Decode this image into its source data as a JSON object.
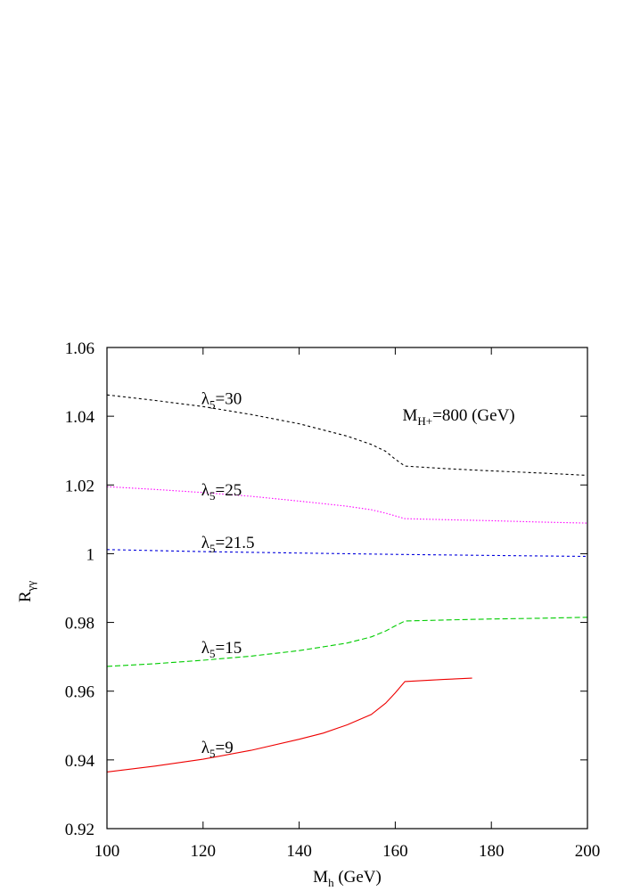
{
  "chart_data": {
    "type": "line",
    "xlabel": "M",
    "xlabel_sub": "h",
    "xlabel_unit": " (GeV)",
    "ylabel": "R",
    "ylabel_sub": "γγ",
    "xlim": [
      100,
      200
    ],
    "ylim": [
      0.92,
      1.06
    ],
    "xticks": [
      100,
      120,
      140,
      160,
      180,
      200
    ],
    "xtick_labels": [
      "100",
      "120",
      "140",
      "160",
      "180",
      "200"
    ],
    "yticks": [
      0.92,
      0.94,
      0.96,
      0.98,
      1.0,
      1.02,
      1.04,
      1.06
    ],
    "ytick_labels": [
      "0.92",
      "0.94",
      "0.96",
      "0.98",
      "1",
      "1.02",
      "1.04",
      "1.06"
    ],
    "grid": false,
    "annotation": {
      "main": "M",
      "sub": "H+",
      "rest": "=800 (GeV)"
    },
    "series": [
      {
        "label_main": "λ",
        "label_sub": "5",
        "label_rest": "=30",
        "color": "#000000",
        "dash": "3,3",
        "label_x": 120,
        "label_y": 1.043,
        "x": [
          100,
          110,
          120,
          130,
          140,
          150,
          155,
          158,
          160,
          162,
          170,
          180,
          190,
          200
        ],
        "y": [
          1.0462,
          1.0446,
          1.0428,
          1.0405,
          1.0378,
          1.0342,
          1.0318,
          1.0298,
          1.0275,
          1.0255,
          1.0248,
          1.0241,
          1.0235,
          1.0228
        ]
      },
      {
        "label_main": "λ",
        "label_sub": "5",
        "label_rest": "=25",
        "color": "#ff00ff",
        "dash": "1.5,2",
        "label_x": 120,
        "label_y": 1.0165,
        "x": [
          100,
          110,
          120,
          130,
          140,
          150,
          155,
          158,
          160,
          162,
          170,
          180,
          190,
          200
        ],
        "y": [
          1.0195,
          1.0187,
          1.0178,
          1.0167,
          1.0153,
          1.0138,
          1.0128,
          1.0118,
          1.011,
          1.0102,
          1.0099,
          1.0096,
          1.0092,
          1.0089
        ]
      },
      {
        "label_main": "λ",
        "label_sub": "5",
        "label_rest": "=21.5",
        "color": "#0000dd",
        "dash": "3,3",
        "label_x": 120,
        "label_y": 1.0012,
        "x": [
          100,
          120,
          140,
          160,
          180,
          200
        ],
        "y": [
          1.0012,
          1.0006,
          1.0002,
          0.9998,
          0.9995,
          0.9992
        ]
      },
      {
        "label_main": "λ",
        "label_sub": "5",
        "label_rest": "=15",
        "color": "#00cc00",
        "dash": "6,3",
        "label_x": 120,
        "label_y": 0.9705,
        "x": [
          100,
          110,
          120,
          130,
          140,
          150,
          155,
          158,
          160,
          162,
          170,
          180,
          190,
          200
        ],
        "y": [
          0.9672,
          0.968,
          0.969,
          0.9702,
          0.9718,
          0.974,
          0.9758,
          0.9775,
          0.979,
          0.9804,
          0.9807,
          0.981,
          0.9812,
          0.9815
        ]
      },
      {
        "label_main": "λ",
        "label_sub": "5",
        "label_rest": "=9",
        "color": "#ee0000",
        "dash": "",
        "label_x": 120,
        "label_y": 0.9415,
        "x": [
          100,
          110,
          120,
          130,
          140,
          145,
          150,
          155,
          158,
          160,
          162,
          170,
          176
        ],
        "y": [
          0.9365,
          0.9382,
          0.9402,
          0.9428,
          0.946,
          0.9478,
          0.9502,
          0.9532,
          0.9565,
          0.9595,
          0.9628,
          0.9634,
          0.9638
        ]
      }
    ]
  }
}
